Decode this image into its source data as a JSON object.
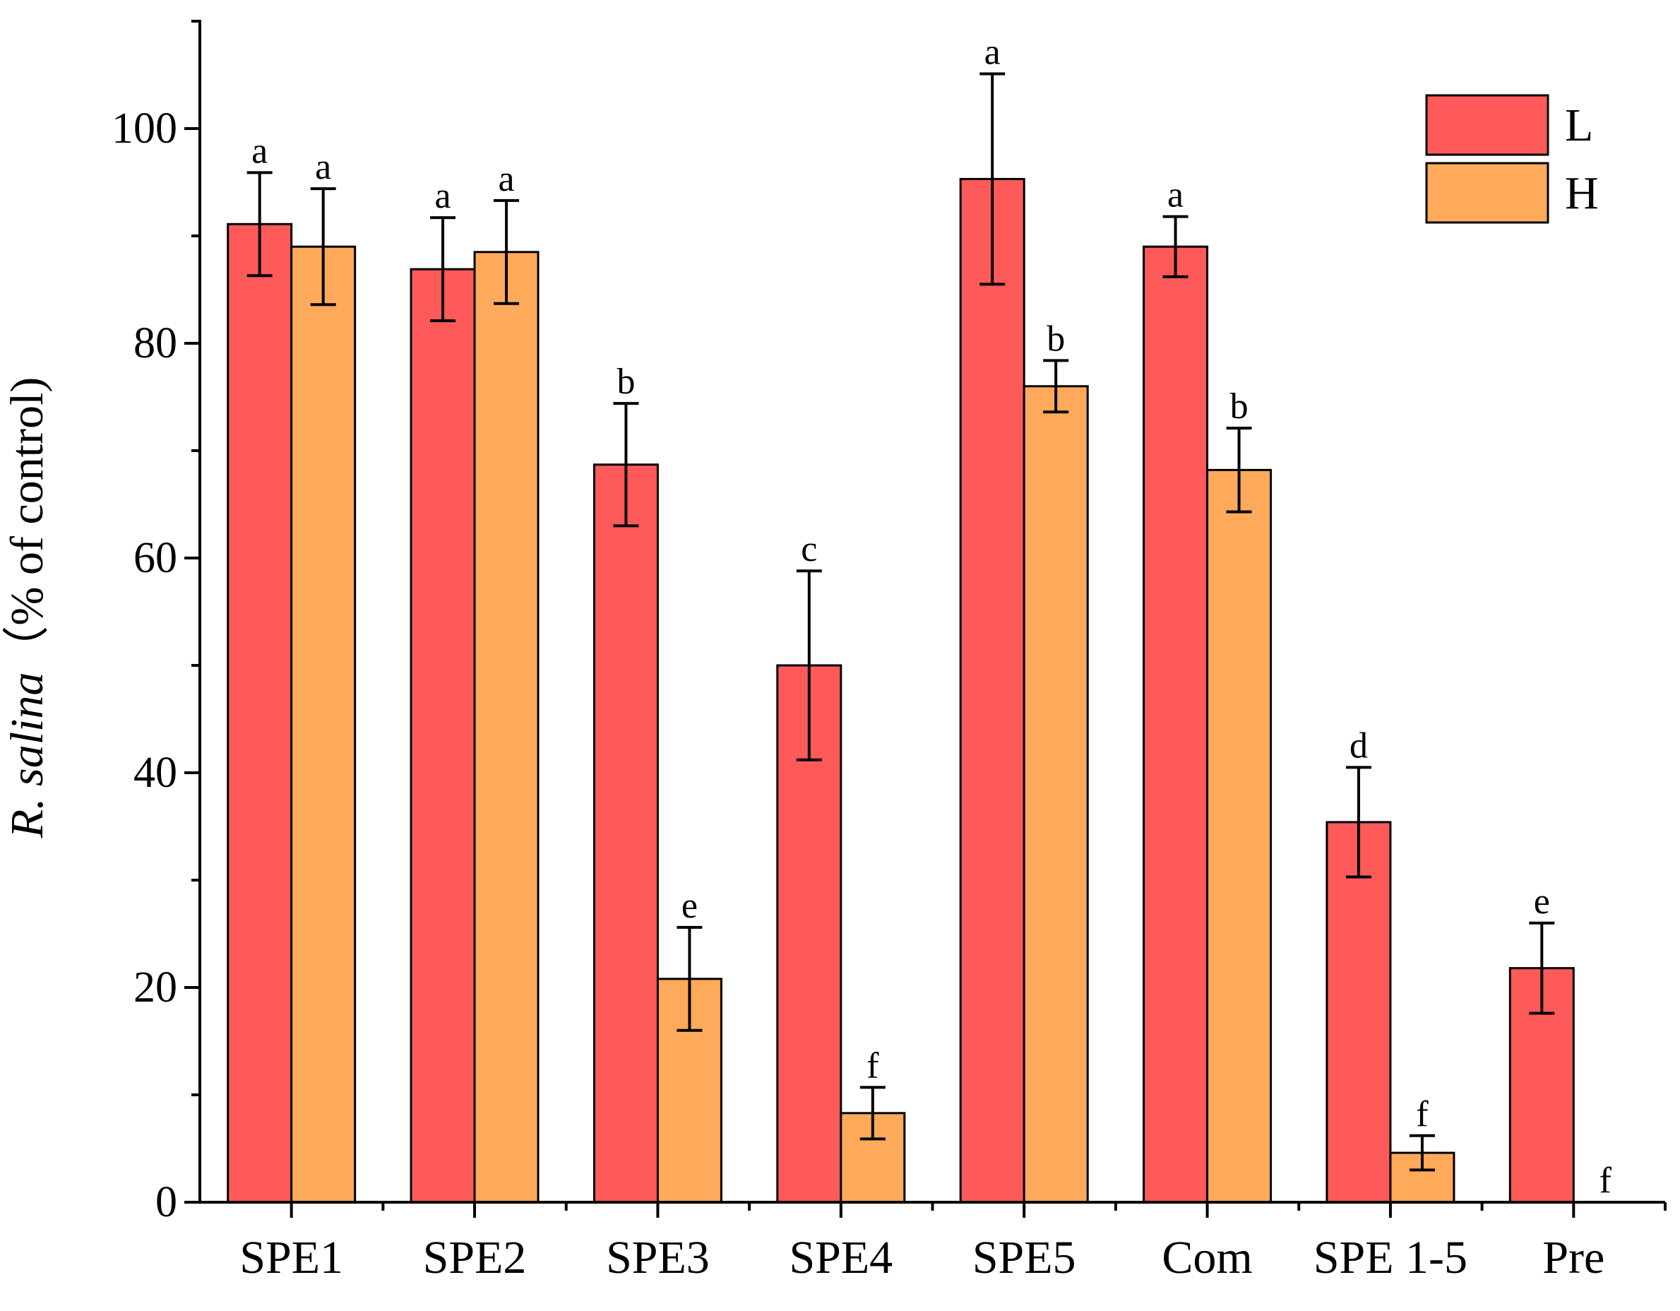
{
  "chart_data": {
    "type": "bar",
    "title": "",
    "xlabel": "",
    "ylabel": {
      "italic": "R. salina",
      "rest": "（% of  control)"
    },
    "ylim": [
      0,
      110
    ],
    "yticks": [
      0,
      20,
      40,
      60,
      80,
      100
    ],
    "categories": [
      "SPE1",
      "SPE2",
      "SPE3",
      "SPE4",
      "SPE5",
      "Com",
      "SPE 1-5",
      "Pre"
    ],
    "series": [
      {
        "name": "L",
        "color": "#FF5A5A",
        "values": [
          91.1,
          86.9,
          68.7,
          50.0,
          95.3,
          89.0,
          35.4,
          21.8
        ],
        "errors": [
          4.8,
          4.8,
          5.7,
          8.8,
          9.8,
          2.8,
          5.1,
          4.2
        ],
        "labels": [
          "a",
          "a",
          "b",
          "c",
          "a",
          "a",
          "d",
          "e"
        ]
      },
      {
        "name": "H",
        "color": "#FFAA5A",
        "values": [
          89.0,
          88.5,
          20.8,
          8.3,
          76.0,
          68.2,
          4.6,
          0
        ],
        "errors": [
          5.4,
          4.8,
          4.8,
          2.4,
          2.4,
          3.9,
          1.6,
          0
        ],
        "labels": [
          "a",
          "a",
          "e",
          "f",
          "b",
          "b",
          "f",
          "f"
        ]
      }
    ],
    "legend": {
      "position": "top-right",
      "entries": [
        "L",
        "H"
      ]
    },
    "grid": false
  }
}
